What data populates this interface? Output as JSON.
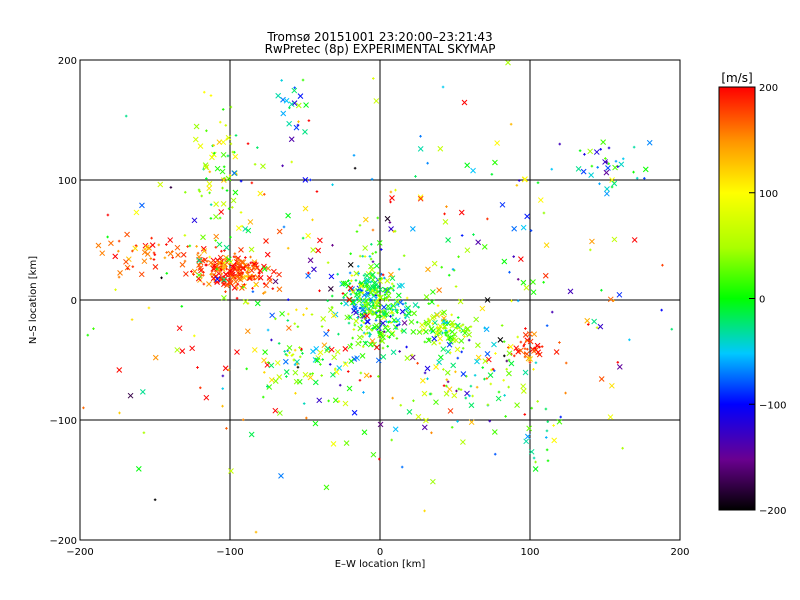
{
  "chart_data": {
    "type": "scatter",
    "title": "Tromsø 20151001 23:20:00–23:21:43",
    "subtitle": "RwPretec (8p) EXPERIMENTAL SKYMAP",
    "xlabel": "E–W location [km]",
    "ylabel": "N–S location [km]",
    "xlim": [
      -200,
      200
    ],
    "ylim": [
      -200,
      200
    ],
    "xticks": [
      -200,
      -100,
      0,
      100,
      200
    ],
    "yticks": [
      -200,
      -100,
      0,
      100,
      200
    ],
    "gridlines_x": [
      -100,
      0,
      100
    ],
    "gridlines_y": [
      -100,
      0,
      100
    ],
    "colorbar": {
      "label": "[m/s]",
      "min": -200,
      "max": 200,
      "ticks": [
        200,
        100,
        0,
        -100,
        -200
      ],
      "colormap": "black-purple-blue-cyan-green-yellow-red"
    },
    "markers": [
      "x",
      "+"
    ],
    "clusters": [
      {
        "x": -100,
        "y": 25,
        "sx": 10,
        "sy": 7,
        "n": 170,
        "v": 180,
        "vs": 25
      },
      {
        "x": -150,
        "y": 38,
        "sx": 18,
        "sy": 8,
        "n": 50,
        "v": 175,
        "vs": 30
      },
      {
        "x": -80,
        "y": 18,
        "sx": 12,
        "sy": 8,
        "n": 35,
        "v": 170,
        "vs": 30
      },
      {
        "x": -105,
        "y": 100,
        "sx": 10,
        "sy": 35,
        "n": 70,
        "v": 40,
        "vs": 45
      },
      {
        "x": -8,
        "y": 5,
        "sx": 9,
        "sy": 12,
        "n": 170,
        "v": -20,
        "vs": 50
      },
      {
        "x": 3,
        "y": -15,
        "sx": 12,
        "sy": 15,
        "n": 140,
        "v": 10,
        "vs": 45
      },
      {
        "x": 42,
        "y": -25,
        "sx": 8,
        "sy": 6,
        "n": 80,
        "v": 30,
        "vs": 45
      },
      {
        "x": 100,
        "y": -40,
        "sx": 6,
        "sy": 5,
        "n": 40,
        "v": 180,
        "vs": 20
      },
      {
        "x": 150,
        "y": 112,
        "sx": 12,
        "sy": 10,
        "n": 35,
        "v": -40,
        "vs": 60
      },
      {
        "x": -60,
        "y": 165,
        "sx": 6,
        "sy": 18,
        "n": 18,
        "v": -30,
        "vs": 50
      },
      {
        "x": -50,
        "y": -55,
        "sx": 18,
        "sy": 12,
        "n": 60,
        "v": 20,
        "vs": 60
      },
      {
        "x": 60,
        "y": -60,
        "sx": 28,
        "sy": 22,
        "n": 80,
        "v": 20,
        "vs": 80
      },
      {
        "x": 110,
        "y": -110,
        "sx": 10,
        "sy": 18,
        "n": 15,
        "v": 0,
        "vs": 40
      },
      {
        "x": 0,
        "y": 0,
        "sx": 90,
        "sy": 75,
        "n": 400,
        "v": 40,
        "vs": 120
      }
    ]
  }
}
